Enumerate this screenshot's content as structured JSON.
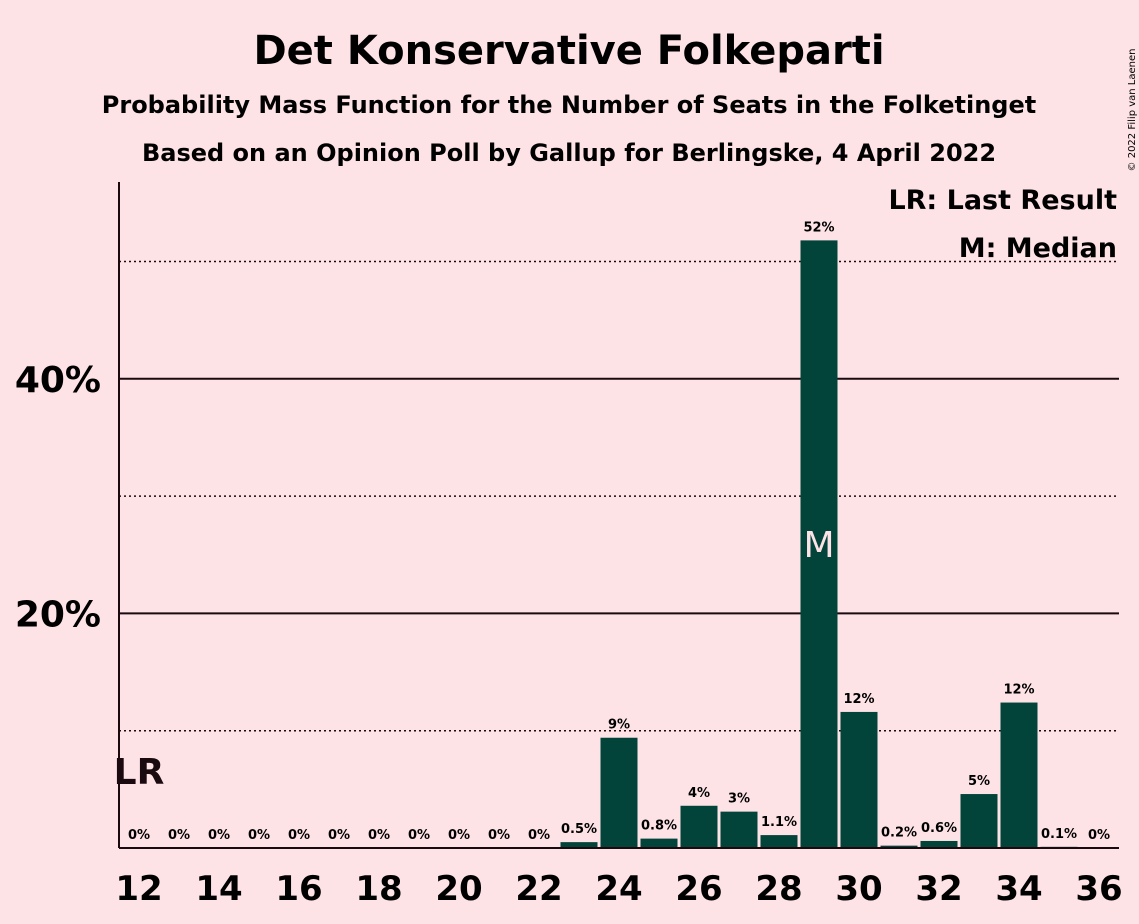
{
  "header": {
    "title": "Det Konservative Folkeparti",
    "subtitle1": "Probability Mass Function for the Number of Seats in the Folketinget",
    "subtitle2": "Based on an Opinion Poll by Gallup for Berlingske, 4 April 2022",
    "credit": "© 2022 Filip van Laenen"
  },
  "legend": {
    "lr": "LR: Last Result",
    "m": "M: Median"
  },
  "colors": {
    "background": "#FDE2E6",
    "bar": "#03443A",
    "text": "#1a0a0f"
  },
  "chart_data": {
    "type": "bar",
    "title": "Det Konservative Folkeparti",
    "xlabel": "",
    "ylabel": "",
    "categories": [
      12,
      13,
      14,
      15,
      16,
      17,
      18,
      19,
      20,
      21,
      22,
      23,
      24,
      25,
      26,
      27,
      28,
      29,
      30,
      31,
      32,
      33,
      34,
      35,
      36
    ],
    "values": [
      0,
      0,
      0,
      0,
      0,
      0,
      0,
      0,
      0,
      0,
      0,
      0.5,
      9.4,
      0.8,
      3.6,
      3.1,
      1.1,
      51.8,
      11.6,
      0.2,
      0.6,
      4.6,
      12.4,
      0.1,
      0
    ],
    "value_labels": [
      "0%",
      "0%",
      "0%",
      "0%",
      "0%",
      "0%",
      "0%",
      "0%",
      "0%",
      "0%",
      "0%",
      "0.5%",
      "9%",
      "0.8%",
      "4%",
      "3%",
      "1.1%",
      "52%",
      "12%",
      "0.2%",
      "0.6%",
      "5%",
      "12%",
      "0.1%",
      "0%"
    ],
    "x_tick_labels": [
      "12",
      "14",
      "16",
      "18",
      "20",
      "22",
      "24",
      "26",
      "28",
      "30",
      "32",
      "34",
      "36"
    ],
    "y_ticks": [
      {
        "value": 20,
        "label": "20%"
      },
      {
        "value": 40,
        "label": "40%"
      }
    ],
    "y_minor_gridlines": [
      10,
      30,
      50
    ],
    "ylim": [
      0,
      56
    ],
    "last_result": {
      "seats": 12,
      "label": "LR"
    },
    "median": {
      "seats": 29,
      "label": "M"
    },
    "grid": true,
    "legend_position": "top-right"
  }
}
